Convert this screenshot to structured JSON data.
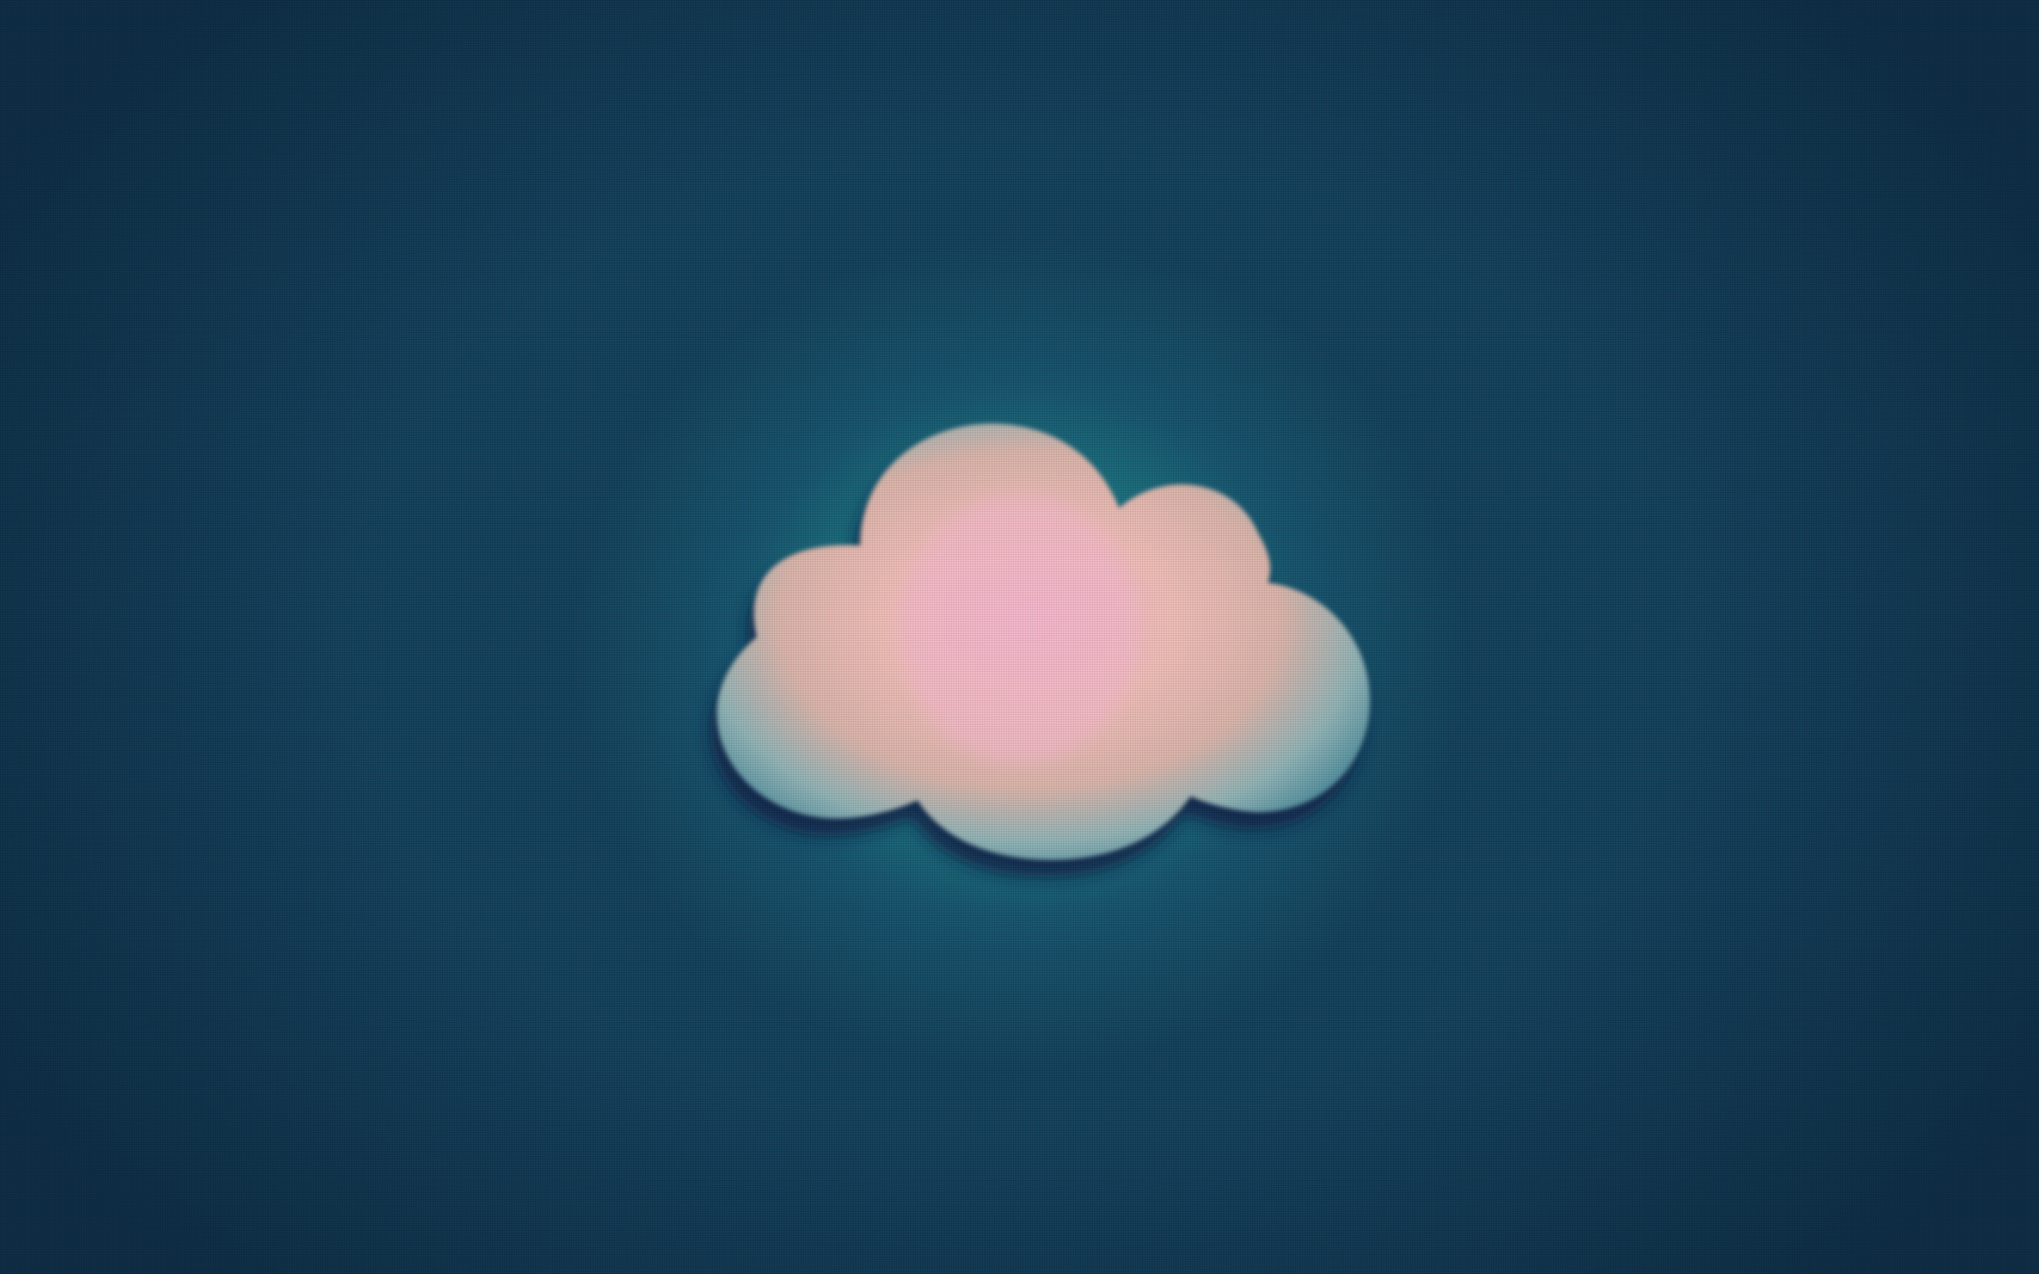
{
  "wallpaper": {
    "icon": "cloud-icon",
    "colors": {
      "background": "#0f3d58",
      "glow": "#1f9494",
      "cloud_center": "#f0b9c4",
      "cloud_mid": "#efc0b4",
      "cloud_edge": "#5e9aa8",
      "shadow": "#0a1f44"
    }
  }
}
